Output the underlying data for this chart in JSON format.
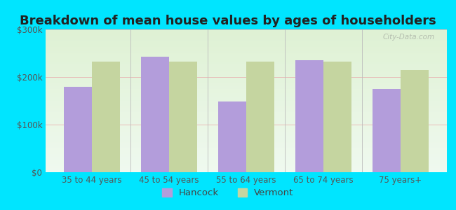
{
  "title": "Breakdown of mean house values by ages of householders",
  "categories": [
    "35 to 44 years",
    "45 to 54 years",
    "55 to 64 years",
    "65 to 74 years",
    "75 years+"
  ],
  "hancock_values": [
    180000,
    242000,
    148000,
    235000,
    175000
  ],
  "vermont_values": [
    232000,
    232000,
    232000,
    232000,
    215000
  ],
  "hancock_color": "#b39ddb",
  "vermont_color": "#c5d5a0",
  "background_outer": "#00e5ff",
  "background_inner_top": "#f0faf0",
  "background_inner_bottom": "#d8eec8",
  "ylim": [
    0,
    300000
  ],
  "yticks": [
    0,
    100000,
    200000,
    300000
  ],
  "ytick_labels": [
    "$0",
    "$100k",
    "$200k",
    "$300k"
  ],
  "legend_labels": [
    "Hancock",
    "Vermont"
  ],
  "title_fontsize": 13,
  "tick_fontsize": 8.5,
  "legend_fontsize": 9.5,
  "bar_width": 0.36,
  "watermark": "City-Data.com"
}
